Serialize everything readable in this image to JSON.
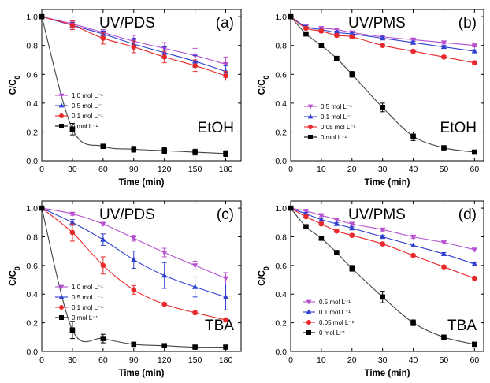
{
  "colors": {
    "purple": "#b54fcf",
    "blue": "#2f3fd0",
    "red": "#e8282a",
    "black": "#000000",
    "fit": "#444444"
  },
  "chart_data": [
    {
      "panel": "(a)",
      "title": "UV/PDS",
      "annotation": "EtOH",
      "type": "line",
      "xlabel": "Time (min)",
      "ylabel": "C/C0",
      "xlim": [
        0,
        195
      ],
      "ylim": [
        0,
        1.05
      ],
      "xticks": [
        0,
        30,
        60,
        90,
        120,
        150,
        180
      ],
      "yticks": [
        0.0,
        0.2,
        0.4,
        0.6,
        0.8,
        1.0
      ],
      "legend_position": "center-left",
      "series": [
        {
          "name": "1.0 mol L⁻¹",
          "color": "purple",
          "marker": "triangle-down",
          "x": [
            0,
            30,
            60,
            90,
            120,
            150,
            180
          ],
          "y": [
            1.0,
            0.95,
            0.89,
            0.83,
            0.78,
            0.73,
            0.67
          ],
          "err": [
            0,
            0.02,
            0.02,
            0.04,
            0.04,
            0.05,
            0.05
          ]
        },
        {
          "name": "0.5 mol L⁻¹",
          "color": "blue",
          "marker": "triangle-up",
          "x": [
            0,
            30,
            60,
            90,
            120,
            150,
            180
          ],
          "y": [
            1.0,
            0.94,
            0.88,
            0.81,
            0.75,
            0.69,
            0.62
          ],
          "err": [
            0,
            0.02,
            0.02,
            0.04,
            0.04,
            0.04,
            0.04
          ]
        },
        {
          "name": "0.1 mol L⁻¹",
          "color": "red",
          "marker": "circle",
          "x": [
            0,
            30,
            60,
            90,
            120,
            150,
            180
          ],
          "y": [
            1.0,
            0.94,
            0.85,
            0.79,
            0.72,
            0.66,
            0.59
          ],
          "err": [
            0,
            0.03,
            0.04,
            0.04,
            0.04,
            0.04,
            0.03
          ]
        },
        {
          "name": "0 mol L⁻¹",
          "color": "black",
          "marker": "square",
          "x": [
            0,
            30,
            60,
            90,
            120,
            150,
            180
          ],
          "y": [
            1.0,
            0.22,
            0.1,
            0.08,
            0.07,
            0.06,
            0.05
          ],
          "err": [
            0,
            0.04,
            0.01,
            0.02,
            0.02,
            0.02,
            0.02
          ]
        }
      ]
    },
    {
      "panel": "(b)",
      "title": "UV/PMS",
      "annotation": "EtOH",
      "type": "line",
      "xlabel": "Time (min)",
      "ylabel": "C/C0",
      "xlim": [
        0,
        63
      ],
      "ylim": [
        0,
        1.05
      ],
      "xticks": [
        0,
        10,
        20,
        30,
        40,
        50,
        60
      ],
      "yticks": [
        0.0,
        0.2,
        0.4,
        0.6,
        0.8,
        1.0
      ],
      "legend_position": "center-left",
      "series": [
        {
          "name": "0.5 mol L⁻¹",
          "color": "purple",
          "marker": "triangle-down",
          "x": [
            0,
            5,
            10,
            15,
            20,
            30,
            40,
            50,
            60
          ],
          "y": [
            1.0,
            0.93,
            0.92,
            0.91,
            0.89,
            0.86,
            0.84,
            0.82,
            0.8
          ],
          "err": [
            0,
            0.01,
            0.01,
            0.01,
            0.01,
            0.01,
            0.01,
            0.01,
            0.01
          ]
        },
        {
          "name": "0.1 mol L⁻¹",
          "color": "blue",
          "marker": "triangle-up",
          "x": [
            0,
            5,
            10,
            15,
            20,
            30,
            40,
            50,
            60
          ],
          "y": [
            1.0,
            0.93,
            0.91,
            0.89,
            0.88,
            0.85,
            0.82,
            0.79,
            0.76
          ],
          "err": [
            0,
            0.01,
            0.01,
            0.01,
            0.01,
            0.01,
            0.01,
            0.01,
            0.01
          ]
        },
        {
          "name": "0.05 mol L⁻¹",
          "color": "red",
          "marker": "circle",
          "x": [
            0,
            5,
            10,
            15,
            20,
            30,
            40,
            50,
            60
          ],
          "y": [
            1.0,
            0.92,
            0.9,
            0.87,
            0.86,
            0.8,
            0.76,
            0.72,
            0.68
          ],
          "err": [
            0,
            0.01,
            0.01,
            0.01,
            0.01,
            0.01,
            0.01,
            0.01,
            0.01
          ]
        },
        {
          "name": "0 mol L⁻¹",
          "color": "black",
          "marker": "square",
          "x": [
            0,
            5,
            10,
            15,
            20,
            30,
            40,
            50,
            60
          ],
          "y": [
            1.0,
            0.88,
            0.8,
            0.71,
            0.6,
            0.37,
            0.17,
            0.09,
            0.06
          ],
          "err": [
            0,
            0.01,
            0.01,
            0.01,
            0.02,
            0.03,
            0.03,
            0.01,
            0.01
          ]
        }
      ]
    },
    {
      "panel": "(c)",
      "title": "UV/PDS",
      "annotation": "TBA",
      "type": "line",
      "xlabel": "Time (min)",
      "ylabel": "C/C0",
      "xlim": [
        0,
        195
      ],
      "ylim": [
        0,
        1.05
      ],
      "xticks": [
        0,
        30,
        60,
        90,
        120,
        150,
        180
      ],
      "yticks": [
        0.0,
        0.2,
        0.4,
        0.6,
        0.8,
        1.0
      ],
      "legend_position": "center-left",
      "series": [
        {
          "name": "1.0 mol L⁻¹",
          "color": "purple",
          "marker": "triangle-down",
          "x": [
            0,
            30,
            60,
            90,
            120,
            150,
            180
          ],
          "y": [
            1.0,
            0.96,
            0.89,
            0.79,
            0.69,
            0.6,
            0.51
          ],
          "err": [
            0,
            0.01,
            0.01,
            0.02,
            0.03,
            0.03,
            0.04
          ]
        },
        {
          "name": "0.5 mol L⁻¹",
          "color": "blue",
          "marker": "triangle-up",
          "x": [
            0,
            30,
            60,
            90,
            120,
            150,
            180
          ],
          "y": [
            1.0,
            0.9,
            0.78,
            0.64,
            0.53,
            0.45,
            0.38
          ],
          "err": [
            0,
            0.02,
            0.04,
            0.06,
            0.09,
            0.07,
            0.09
          ]
        },
        {
          "name": "0.1 mol L⁻¹",
          "color": "red",
          "marker": "circle",
          "x": [
            0,
            30,
            60,
            90,
            120,
            150,
            180
          ],
          "y": [
            1.0,
            0.83,
            0.6,
            0.43,
            0.33,
            0.27,
            0.22
          ],
          "err": [
            0,
            0.06,
            0.06,
            0.03,
            0.01,
            0.01,
            0.01
          ]
        },
        {
          "name": "0 mol L⁻¹",
          "color": "black",
          "marker": "square",
          "x": [
            0,
            30,
            60,
            90,
            120,
            150,
            180
          ],
          "y": [
            1.0,
            0.15,
            0.09,
            0.05,
            0.04,
            0.03,
            0.03
          ],
          "err": [
            0,
            0.06,
            0.03,
            0.01,
            0.01,
            0.01,
            0.01
          ]
        }
      ]
    },
    {
      "panel": "(d)",
      "title": "UV/PMS",
      "annotation": "TBA",
      "type": "line",
      "xlabel": "Time (min)",
      "ylabel": "C/C0",
      "xlim": [
        0,
        63
      ],
      "ylim": [
        0,
        1.05
      ],
      "xticks": [
        0,
        10,
        20,
        30,
        40,
        50,
        60
      ],
      "yticks": [
        0.0,
        0.2,
        0.4,
        0.6,
        0.8,
        1.0
      ],
      "legend_position": "bottom-left",
      "series": [
        {
          "name": "0.5 mol L⁻¹",
          "color": "purple",
          "marker": "triangle-down",
          "x": [
            0,
            5,
            10,
            15,
            20,
            30,
            40,
            50,
            60
          ],
          "y": [
            1.0,
            0.98,
            0.95,
            0.92,
            0.89,
            0.85,
            0.8,
            0.76,
            0.71
          ],
          "err": [
            0,
            0.01,
            0.01,
            0.01,
            0.01,
            0.01,
            0.01,
            0.01,
            0.01
          ]
        },
        {
          "name": "0.1 mol L⁻¹",
          "color": "blue",
          "marker": "triangle-up",
          "x": [
            0,
            5,
            10,
            15,
            20,
            30,
            40,
            50,
            60
          ],
          "y": [
            1.0,
            0.96,
            0.92,
            0.89,
            0.86,
            0.8,
            0.74,
            0.68,
            0.61
          ],
          "err": [
            0,
            0.01,
            0.01,
            0.01,
            0.01,
            0.01,
            0.01,
            0.01,
            0.01
          ]
        },
        {
          "name": "0.05 mol L⁻¹",
          "color": "red",
          "marker": "circle",
          "x": [
            0,
            5,
            10,
            15,
            20,
            30,
            40,
            50,
            60
          ],
          "y": [
            1.0,
            0.94,
            0.89,
            0.84,
            0.81,
            0.75,
            0.67,
            0.59,
            0.51
          ],
          "err": [
            0,
            0.01,
            0.01,
            0.01,
            0.01,
            0.01,
            0.01,
            0.01,
            0.01
          ]
        },
        {
          "name": "0 mol L⁻¹",
          "color": "black",
          "marker": "square",
          "x": [
            0,
            5,
            10,
            15,
            20,
            30,
            40,
            50,
            60
          ],
          "y": [
            1.0,
            0.87,
            0.79,
            0.69,
            0.58,
            0.38,
            0.2,
            0.1,
            0.05
          ],
          "err": [
            0,
            0.01,
            0.01,
            0.01,
            0.02,
            0.04,
            0.02,
            0.01,
            0.01
          ]
        }
      ]
    }
  ]
}
